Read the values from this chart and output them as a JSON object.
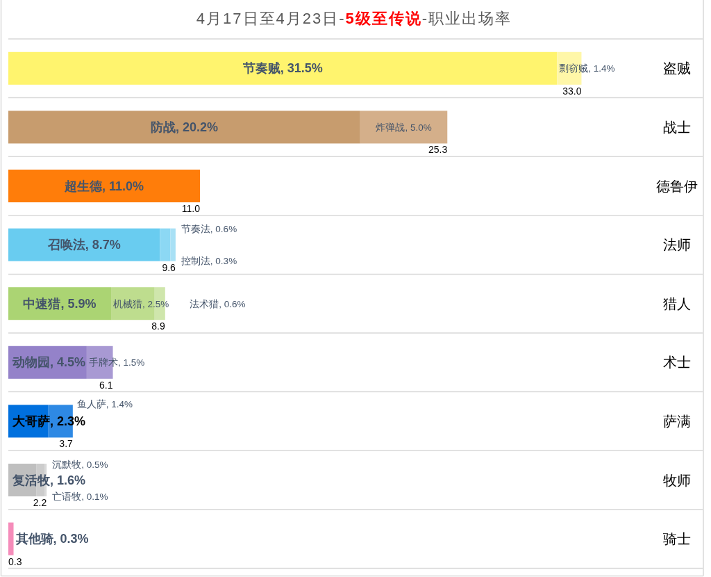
{
  "chart_data": {
    "type": "bar",
    "orientation": "horizontal",
    "stacked": true,
    "title": "4月17日至4月23日-**5级至传说**-职业出场率",
    "categories": [
      "盗贼",
      "战士",
      "德鲁伊",
      "法师",
      "猎人",
      "术士",
      "萨满",
      "牧师",
      "骑士"
    ],
    "totals": [
      "33.0",
      "25.3",
      "11.0",
      "9.6",
      "8.9",
      "6.1",
      "3.7",
      "2.2",
      "0.3"
    ],
    "series": [
      {
        "colors": [
          "#FFF46E",
          "#C79C6E",
          "#FF7D0A",
          "#69CCF0",
          "#ABD473",
          "#9482C9",
          "#0070DE",
          "#BFBFBF",
          "#F58CBA"
        ],
        "values": [
          31.5,
          20.2,
          11.0,
          8.7,
          5.9,
          4.5,
          2.3,
          1.6,
          0.3
        ],
        "value_labels": [
          "节奏贼, 31.5%",
          "防战, 20.2%",
          "超生德, 11.0%",
          "召唤法, 8.7%",
          "中速猎, 5.9%",
          "动物园, 4.5%",
          "大哥萨, 2.3%",
          "复活牧, 1.6%",
          "其他骑, 0.3%"
        ]
      },
      {
        "colors": [
          "#FFF7A8",
          "#D4AF8A",
          null,
          "#8CD8F4",
          "#BEDD8E",
          "#A899D3",
          "#2E89E4",
          "#CCCCCC",
          null
        ],
        "values": [
          1.4,
          5.0,
          null,
          0.6,
          2.5,
          1.5,
          1.4,
          0.5,
          null
        ],
        "value_labels": [
          "剽窃贼, 1.4%",
          "炸弹战, 5.0%",
          null,
          "节奏法, 0.6%",
          "机械猎, 2.5%",
          "手牌术, 1.5%",
          "鱼人萨, 1.4%",
          "沉默牧, 0.5%",
          null
        ]
      },
      {
        "colors": [
          null,
          null,
          null,
          "#A8E0F5",
          "#CFE6AC",
          null,
          null,
          "#D9D9D9",
          null
        ],
        "values": [
          null,
          null,
          null,
          0.3,
          0.6,
          null,
          null,
          0.1,
          null
        ],
        "value_labels": [
          null,
          null,
          null,
          "控制法, 0.3%",
          "法术猎, 0.6%",
          null,
          null,
          "亡语牧, 0.1%",
          null
        ]
      }
    ]
  }
}
